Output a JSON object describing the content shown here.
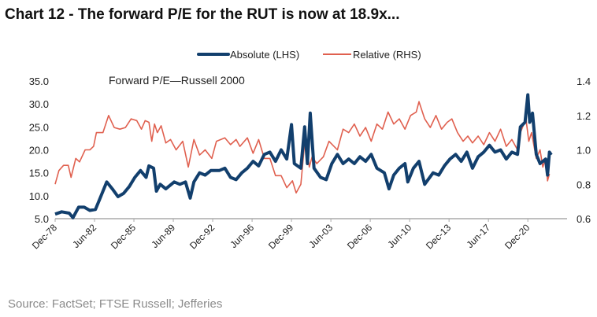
{
  "title": "Chart 12 - The forward P/E for the RUT is now at 18.9x...",
  "source": "Source: FactSet; FTSE Russell; Jefferies",
  "chart_data": {
    "type": "line",
    "title": "Forward P/E—Russell 2000",
    "legend_placement": "top-center",
    "grid": false,
    "x_tick_labels": [
      "Dec-78",
      "Jun-82",
      "Dec-85",
      "Jun-89",
      "Dec-92",
      "Jun-96",
      "Dec-99",
      "Jun-03",
      "Dec-06",
      "Jun-10",
      "Dec-13",
      "Jun-17",
      "Dec-20"
    ],
    "x_ticks": [
      "1978-12",
      "1982-06",
      "1985-12",
      "1989-06",
      "1992-12",
      "1996-06",
      "1999-12",
      "2003-06",
      "2006-12",
      "2010-06",
      "2013-12",
      "2017-06",
      "2020-12"
    ],
    "left_axis": {
      "ylim": [
        5,
        35
      ],
      "tick_labels": [
        "5.0",
        "10.0",
        "15.0",
        "20.0",
        "25.0",
        "30.0",
        "35.0"
      ]
    },
    "right_axis": {
      "ylim": [
        0.6,
        1.4
      ],
      "tick_labels": [
        "0.6",
        "0.8",
        "1.0",
        "1.2",
        "1.4"
      ]
    },
    "series": [
      {
        "name": "Absolute (LHS)",
        "axis": "left",
        "color": "#123f6d",
        "points": [
          [
            "1978-12",
            6.0
          ],
          [
            "1979-07",
            6.5
          ],
          [
            "1980-03",
            6.2
          ],
          [
            "1980-07",
            5.2
          ],
          [
            "1981-01",
            7.5
          ],
          [
            "1981-07",
            7.5
          ],
          [
            "1982-01",
            6.8
          ],
          [
            "1982-07",
            7.0
          ],
          [
            "1983-01",
            10
          ],
          [
            "1983-07",
            13
          ],
          [
            "1984-01",
            11.5
          ],
          [
            "1984-07",
            9.8
          ],
          [
            "1985-01",
            10.5
          ],
          [
            "1985-07",
            12
          ],
          [
            "1986-01",
            14
          ],
          [
            "1986-07",
            15.5
          ],
          [
            "1987-01",
            14
          ],
          [
            "1987-04",
            16.5
          ],
          [
            "1987-09",
            16
          ],
          [
            "1987-12",
            11
          ],
          [
            "1988-04",
            12.5
          ],
          [
            "1988-10",
            11.5
          ],
          [
            "1989-07",
            13
          ],
          [
            "1990-01",
            12.5
          ],
          [
            "1990-07",
            13
          ],
          [
            "1990-12",
            9.5
          ],
          [
            "1991-04",
            13
          ],
          [
            "1991-10",
            15
          ],
          [
            "1992-04",
            14.5
          ],
          [
            "1992-10",
            15.5
          ],
          [
            "1993-07",
            15.5
          ],
          [
            "1994-01",
            16
          ],
          [
            "1994-07",
            14
          ],
          [
            "1995-01",
            13.5
          ],
          [
            "1995-07",
            15
          ],
          [
            "1996-01",
            16
          ],
          [
            "1996-07",
            17.5
          ],
          [
            "1997-01",
            16.5
          ],
          [
            "1997-07",
            19
          ],
          [
            "1998-01",
            19.5
          ],
          [
            "1998-07",
            17.5
          ],
          [
            "1999-01",
            20
          ],
          [
            "1999-07",
            18
          ],
          [
            "1999-12",
            25.5
          ],
          [
            "2000-03",
            17
          ],
          [
            "2000-10",
            16
          ],
          [
            "2001-02",
            25
          ],
          [
            "2001-05",
            17
          ],
          [
            "2001-08",
            28
          ],
          [
            "2001-12",
            16
          ],
          [
            "2002-07",
            14
          ],
          [
            "2003-01",
            13.5
          ],
          [
            "2003-07",
            17
          ],
          [
            "2004-01",
            19
          ],
          [
            "2004-07",
            17
          ],
          [
            "2005-01",
            18
          ],
          [
            "2005-07",
            17
          ],
          [
            "2006-01",
            18.5
          ],
          [
            "2006-07",
            17.5
          ],
          [
            "2007-01",
            19
          ],
          [
            "2007-07",
            16
          ],
          [
            "2008-03",
            15
          ],
          [
            "2008-08",
            11.5
          ],
          [
            "2009-01",
            14.5
          ],
          [
            "2009-07",
            16
          ],
          [
            "2010-01",
            17
          ],
          [
            "2010-04",
            13
          ],
          [
            "2010-10",
            16
          ],
          [
            "2011-04",
            17.5
          ],
          [
            "2011-10",
            12.5
          ],
          [
            "2012-07",
            15
          ],
          [
            "2013-01",
            14.5
          ],
          [
            "2013-07",
            16.5
          ],
          [
            "2014-01",
            18
          ],
          [
            "2014-07",
            19
          ],
          [
            "2015-01",
            17.5
          ],
          [
            "2015-07",
            19.5
          ],
          [
            "2016-01",
            16
          ],
          [
            "2016-07",
            18.5
          ],
          [
            "2017-01",
            19.5
          ],
          [
            "2017-07",
            21
          ],
          [
            "2018-01",
            19.5
          ],
          [
            "2018-07",
            20
          ],
          [
            "2019-01",
            18
          ],
          [
            "2019-07",
            19.5
          ],
          [
            "2020-01",
            19
          ],
          [
            "2020-04",
            25
          ],
          [
            "2020-09",
            26
          ],
          [
            "2020-12",
            32
          ],
          [
            "2021-02",
            26
          ],
          [
            "2021-05",
            28
          ],
          [
            "2021-09",
            19
          ],
          [
            "2022-01",
            17
          ],
          [
            "2022-07",
            18
          ],
          [
            "2022-09",
            14.5
          ],
          [
            "2022-11",
            19.5
          ],
          [
            "2023-01",
            18.9
          ]
        ]
      },
      {
        "name": "Relative (RHS)",
        "axis": "right",
        "color": "#e0604f",
        "points": [
          [
            "1978-12",
            0.8
          ],
          [
            "1979-04",
            0.88
          ],
          [
            "1979-09",
            0.91
          ],
          [
            "1980-02",
            0.91
          ],
          [
            "1980-05",
            0.84
          ],
          [
            "1980-10",
            0.95
          ],
          [
            "1981-02",
            0.93
          ],
          [
            "1981-08",
            1.0
          ],
          [
            "1982-01",
            1.0
          ],
          [
            "1982-05",
            1.02
          ],
          [
            "1982-08",
            1.1
          ],
          [
            "1983-03",
            1.1
          ],
          [
            "1983-09",
            1.2
          ],
          [
            "1984-03",
            1.13
          ],
          [
            "1984-09",
            1.12
          ],
          [
            "1985-03",
            1.13
          ],
          [
            "1985-09",
            1.18
          ],
          [
            "1986-03",
            1.17
          ],
          [
            "1986-08",
            1.12
          ],
          [
            "1986-12",
            1.17
          ],
          [
            "1987-04",
            1.16
          ],
          [
            "1987-07",
            1.05
          ],
          [
            "1987-10",
            1.15
          ],
          [
            "1988-01",
            1.1
          ],
          [
            "1988-05",
            1.14
          ],
          [
            "1988-10",
            1.04
          ],
          [
            "1989-03",
            1.06
          ],
          [
            "1989-09",
            1.0
          ],
          [
            "1990-04",
            1.05
          ],
          [
            "1990-10",
            0.9
          ],
          [
            "1991-04",
            1.06
          ],
          [
            "1991-10",
            0.97
          ],
          [
            "1992-04",
            1.0
          ],
          [
            "1992-11",
            0.95
          ],
          [
            "1993-04",
            1.05
          ],
          [
            "1994-01",
            1.07
          ],
          [
            "1994-07",
            1.03
          ],
          [
            "1995-01",
            1.06
          ],
          [
            "1995-05",
            1.02
          ],
          [
            "1996-01",
            1.07
          ],
          [
            "1996-07",
            0.98
          ],
          [
            "1997-01",
            1.06
          ],
          [
            "1997-07",
            0.95
          ],
          [
            "1998-01",
            0.95
          ],
          [
            "1998-07",
            0.85
          ],
          [
            "1999-01",
            0.85
          ],
          [
            "1999-07",
            0.78
          ],
          [
            "2000-01",
            0.82
          ],
          [
            "2000-05",
            0.75
          ],
          [
            "2000-10",
            0.8
          ],
          [
            "2001-03",
            1.1
          ],
          [
            "2001-07",
            0.9
          ],
          [
            "2001-10",
            0.96
          ],
          [
            "2002-03",
            0.92
          ],
          [
            "2002-10",
            0.96
          ],
          [
            "2003-04",
            1.05
          ],
          [
            "2004-01",
            1.0
          ],
          [
            "2004-07",
            1.12
          ],
          [
            "2005-01",
            1.1
          ],
          [
            "2005-07",
            1.15
          ],
          [
            "2006-01",
            1.08
          ],
          [
            "2006-07",
            1.13
          ],
          [
            "2007-01",
            1.05
          ],
          [
            "2007-07",
            1.15
          ],
          [
            "2008-01",
            1.12
          ],
          [
            "2008-07",
            1.22
          ],
          [
            "2009-01",
            1.15
          ],
          [
            "2009-07",
            1.18
          ],
          [
            "2010-01",
            1.12
          ],
          [
            "2010-07",
            1.2
          ],
          [
            "2011-01",
            1.22
          ],
          [
            "2011-04",
            1.28
          ],
          [
            "2011-10",
            1.18
          ],
          [
            "2012-04",
            1.13
          ],
          [
            "2012-10",
            1.2
          ],
          [
            "2013-04",
            1.12
          ],
          [
            "2013-10",
            1.16
          ],
          [
            "2014-03",
            1.18
          ],
          [
            "2014-09",
            1.1
          ],
          [
            "2015-03",
            1.05
          ],
          [
            "2015-08",
            1.08
          ],
          [
            "2016-01",
            1.04
          ],
          [
            "2016-07",
            1.08
          ],
          [
            "2017-01",
            1.03
          ],
          [
            "2017-07",
            1.1
          ],
          [
            "2018-01",
            1.05
          ],
          [
            "2018-07",
            1.12
          ],
          [
            "2019-01",
            1.02
          ],
          [
            "2019-07",
            1.06
          ],
          [
            "2020-01",
            1.0
          ],
          [
            "2020-04",
            1.1
          ],
          [
            "2020-10",
            1.18
          ],
          [
            "2021-01",
            1.05
          ],
          [
            "2021-04",
            1.1
          ],
          [
            "2021-09",
            0.95
          ],
          [
            "2022-01",
            1.0
          ],
          [
            "2022-04",
            0.9
          ],
          [
            "2022-07",
            0.95
          ],
          [
            "2022-09",
            0.82
          ],
          [
            "2022-11",
            0.86
          ]
        ]
      }
    ]
  }
}
